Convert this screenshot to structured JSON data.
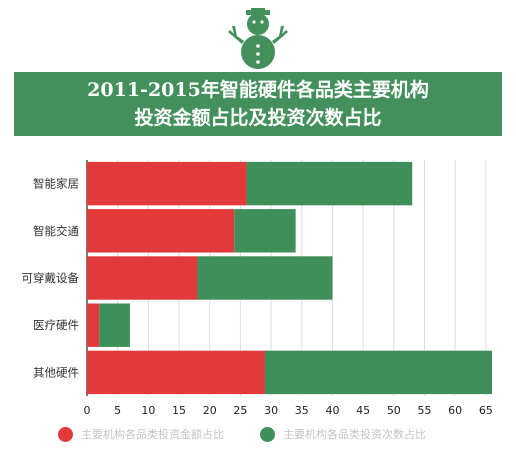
{
  "title": {
    "line1": "2011-2015年智能硬件各品类主要机构",
    "line2": "投资金额占比及投资次数占比"
  },
  "colors": {
    "banner": "#43905c",
    "series_amount": "#e23a3a",
    "series_count": "#3f8f5a",
    "grid": "#dedede"
  },
  "chart_data": {
    "type": "bar",
    "orientation": "horizontal",
    "stacked": true,
    "categories": [
      "智能家居",
      "智能交通",
      "可穿戴设备",
      "医疗硬件",
      "其他硬件"
    ],
    "series": [
      {
        "name": "主要机构各品类投资金额占比",
        "values": [
          26,
          24,
          18,
          2,
          29
        ]
      },
      {
        "name": "主要机构各品类投资次数占比",
        "values": [
          27,
          10,
          22,
          5,
          37
        ]
      }
    ],
    "xlim": [
      0,
      66
    ],
    "xticks": [
      0,
      5,
      10,
      15,
      20,
      25,
      30,
      35,
      40,
      45,
      50,
      55,
      60,
      65
    ],
    "grid": true,
    "legend_position": "bottom"
  }
}
